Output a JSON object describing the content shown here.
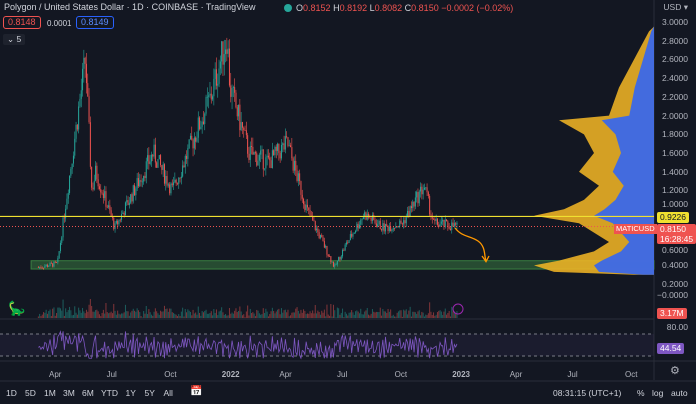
{
  "header": {
    "title": "Polygon / United States Dollar · 1D · COINBASE · TradingView",
    "ohlc": {
      "o_label": "O",
      "o": "0.8152",
      "h_label": "H",
      "h": "0.8192",
      "l_label": "L",
      "l": "0.8082",
      "c_label": "C",
      "c": "0.8150",
      "change": "−0.0002 (−0.02%)"
    },
    "bid": "0.8148",
    "spread": "0.0001",
    "ask": "0.8149",
    "collapse_count": "5"
  },
  "price_axis": {
    "currency": "USD",
    "labels": [
      "3.0000",
      "2.8000",
      "2.6000",
      "2.4000",
      "2.2000",
      "2.0000",
      "1.8000",
      "1.6000",
      "1.4000",
      "1.2000",
      "1.0000",
      "0.6000",
      "0.4000",
      "0.2000",
      "−0.0000"
    ]
  },
  "tags": {
    "line_level": "0.9226",
    "symbol": "MATICUSD",
    "last_price": "0.8150",
    "countdown": "16:28:45",
    "volume": "3.17M",
    "rsi_level": "80.00",
    "rsi_value": "44.54"
  },
  "colors": {
    "bg": "#131722",
    "up": "#26a69a",
    "down": "#ef5350",
    "line": "#f0e130",
    "rsi": "#7e57c2",
    "vp_yellow": "#f7b924",
    "vp_blue": "#2962ff",
    "zone": "#4caf50"
  },
  "time_axis": [
    "Apr",
    "Jul",
    "Oct",
    "2022",
    "Apr",
    "Jul",
    "Oct",
    "2023",
    "Apr",
    "Jul",
    "Oct"
  ],
  "toolbar": {
    "ranges": [
      "1D",
      "5D",
      "1M",
      "3M",
      "6M",
      "YTD",
      "1Y",
      "5Y",
      "All"
    ],
    "clock": "08:31:15 (UTC+1)",
    "percent": "%",
    "log": "log",
    "auto": "auto"
  },
  "chart_data": {
    "type": "candlestick",
    "symbol": "MATICUSD",
    "ylim": [
      0,
      3.0
    ],
    "price_path": [
      [
        "2021-03",
        0.38
      ],
      [
        "2021-04",
        0.42
      ],
      [
        "2021-05-15",
        2.6
      ],
      [
        "2021-05-25",
        1.2
      ],
      [
        "2021-06",
        1.4
      ],
      [
        "2021-07",
        0.8
      ],
      [
        "2021-08",
        1.2
      ],
      [
        "2021-09",
        1.6
      ],
      [
        "2021-10",
        1.2
      ],
      [
        "2021-11",
        1.7
      ],
      [
        "2021-12",
        2.2
      ],
      [
        "2021-12-27",
        2.85
      ],
      [
        "2022-01",
        2.3
      ],
      [
        "2022-02",
        1.6
      ],
      [
        "2022-03",
        1.5
      ],
      [
        "2022-04",
        1.7
      ],
      [
        "2022-05",
        1.0
      ],
      [
        "2022-06-15",
        0.38
      ],
      [
        "2022-07",
        0.6
      ],
      [
        "2022-08",
        0.95
      ],
      [
        "2022-09",
        0.8
      ],
      [
        "2022-10",
        0.85
      ],
      [
        "2022-11-05",
        1.25
      ],
      [
        "2022-11-20",
        0.85
      ],
      [
        "2022-12-28",
        0.815
      ]
    ],
    "horizontal_line": 0.9226,
    "support_zone": [
      0.36,
      0.45
    ]
  }
}
